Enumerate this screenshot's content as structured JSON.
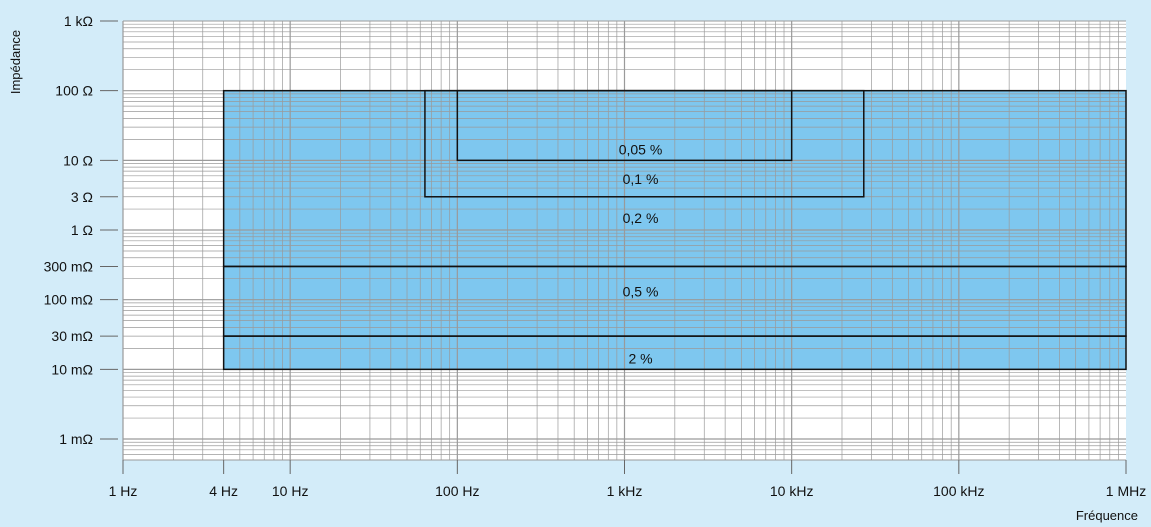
{
  "chart_data": {
    "type": "area",
    "xlabel": "Fréquence",
    "ylabel": "Impédance",
    "x_scale": "log",
    "y_scale": "log",
    "xlim_hz": [
      1,
      1000000
    ],
    "ylim_ohm": [
      0.0005,
      1000
    ],
    "grid": true,
    "x_ticks": [
      {
        "value": 1,
        "label": "1 Hz"
      },
      {
        "value": 4,
        "label": "4 Hz"
      },
      {
        "value": 10,
        "label": "10 Hz"
      },
      {
        "value": 100,
        "label": "100 Hz"
      },
      {
        "value": 1000,
        "label": "1 kHz"
      },
      {
        "value": 10000,
        "label": "10 kHz"
      },
      {
        "value": 100000,
        "label": "100 kHz"
      },
      {
        "value": 1000000,
        "label": "1 MHz"
      }
    ],
    "y_ticks": [
      {
        "value": 1000,
        "label": "1 kΩ"
      },
      {
        "value": 100,
        "label": "100 Ω"
      },
      {
        "value": 10,
        "label": "10 Ω"
      },
      {
        "value": 3,
        "label": "3 Ω"
      },
      {
        "value": 1,
        "label": "1 Ω"
      },
      {
        "value": 0.3,
        "label": "300 mΩ"
      },
      {
        "value": 0.1,
        "label": "100 mΩ"
      },
      {
        "value": 0.03,
        "label": "30 mΩ"
      },
      {
        "value": 0.01,
        "label": "10 mΩ"
      },
      {
        "value": 0.001,
        "label": "1 mΩ"
      }
    ],
    "fill_region": {
      "x": [
        4,
        1000000
      ],
      "y": [
        0.01,
        100
      ]
    },
    "zones": [
      {
        "label": "0,05 %",
        "x": [
          100,
          10000
        ],
        "y": [
          10,
          100
        ]
      },
      {
        "label": "0,1 %",
        "x": [
          64,
          27000
        ],
        "y": [
          3,
          100
        ]
      },
      {
        "label": "0,2 %",
        "x": [
          4,
          1000000
        ],
        "y": [
          0.3,
          100
        ]
      },
      {
        "label": "0,5 %",
        "x": [
          4,
          1000000
        ],
        "y": [
          0.03,
          0.3
        ]
      },
      {
        "label": "2 %",
        "x": [
          4,
          1000000
        ],
        "y": [
          0.01,
          0.03
        ]
      }
    ],
    "colors": {
      "background": "#d3ecf9",
      "plot_background": "#ffffff",
      "fill": "#7ec7ef",
      "grid": "#9a9a9a",
      "outline": "#111111"
    }
  }
}
